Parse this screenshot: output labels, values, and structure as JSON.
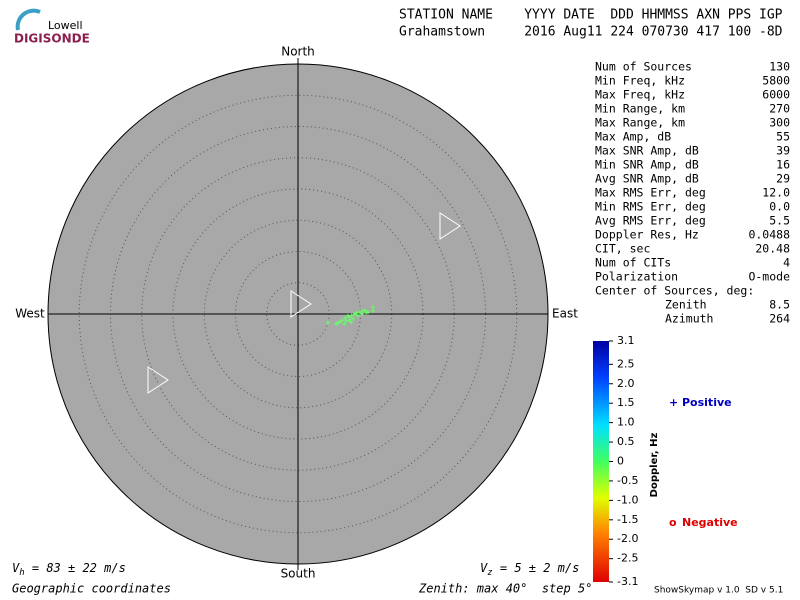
{
  "logo": {
    "top": "Lowell",
    "bottom": "DIGISONDE"
  },
  "header": {
    "line1": "STATION NAME    YYYY DATE  DDD HHMMSS AXN PPS IGP",
    "line2": "Grahamstown     2016 Aug11 224 070730 417 100 -8D"
  },
  "stats": {
    "rows": [
      [
        "Num of Sources",
        "130"
      ],
      [
        "Min Freq, kHz",
        "5800"
      ],
      [
        "Max Freq, kHz",
        "6000"
      ],
      [
        "Min Range, km",
        "270"
      ],
      [
        "Max Range, km",
        "300"
      ],
      [
        "Max Amp, dB",
        "55"
      ],
      [
        "Max SNR Amp, dB",
        "39"
      ],
      [
        "Min SNR Amp, dB",
        "16"
      ],
      [
        "Avg SNR Amp, dB",
        "29"
      ],
      [
        "Max RMS Err, deg",
        "12.0"
      ],
      [
        "Min RMS Err, deg",
        "0.0"
      ],
      [
        "Avg RMS Err, deg",
        "5.5"
      ],
      [
        "Doppler Res, Hz",
        "0.0488"
      ],
      [
        "CIT, sec",
        "20.48"
      ],
      [
        "Num of CITs",
        "4"
      ],
      [
        "Polarization",
        "O-mode"
      ]
    ],
    "center_title": "Center of Sources, deg:",
    "center_rows": [
      [
        "Zenith",
        "8.5"
      ],
      [
        "Azimuth",
        "264"
      ]
    ]
  },
  "chart_data": {
    "type": "skymap",
    "directions": {
      "north": "North",
      "south": "South",
      "west": "West",
      "east": "East"
    },
    "zenith_max": 40,
    "zenith_step": 5,
    "xlim": [
      -40,
      40
    ],
    "ylim": [
      -40,
      40
    ],
    "series": [
      {
        "name": "Positive",
        "color": "#66ff66",
        "x": [
          6.4,
          7.0,
          7.5,
          8.0,
          8.3,
          8.6,
          9.1,
          9.4,
          9.9,
          10.2,
          10.7,
          12.0,
          12.0,
          11.2,
          7.7,
          6.7,
          6.1,
          4.8,
          8.8,
          8.2,
          9.6,
          7.4,
          8.5,
          10.2,
          10.9
        ],
        "values": [
          -1.4,
          -1.0,
          -0.6,
          -0.3,
          -0.5,
          -0.2,
          0.0,
          0.2,
          0.3,
          0.5,
          0.6,
          1.1,
          0.5,
          0.3,
          -1.1,
          -1.3,
          -1.6,
          -1.4,
          -0.8,
          -1.0,
          -0.3,
          -1.6,
          -1.3,
          0.0,
          0.2
        ]
      }
    ],
    "colorbar": {
      "label": "Doppler, Hz",
      "clim": [
        -3.1,
        3.1
      ],
      "ticks": [
        3.1,
        2.5,
        {
          "value": 2,
          "label": "2.0"
        },
        1.5,
        {
          "value": 1,
          "label": "1.0"
        },
        0.5,
        0,
        -0.5,
        {
          "value": -1,
          "label": "-1.0"
        },
        -1.5,
        {
          "value": -2,
          "label": "-2.0"
        },
        -2.5,
        -3.1
      ]
    },
    "legend": {
      "positive_symbol": "+",
      "positive": "Positive",
      "negative_symbol": "o",
      "negative": "Negative"
    }
  },
  "footer": {
    "vh_symbol": "V",
    "vh_sub": "h",
    "vh_text": " = 83 ± 22 m/s",
    "vz_symbol": "V",
    "vz_sub": "z",
    "vz_text": " = 5 ± 2 m/s",
    "coords": "Geographic coordinates",
    "zenith": "Zenith: max 40°  step 5°",
    "version": "ShowSkymap v 1.0  SD v 5.1"
  }
}
